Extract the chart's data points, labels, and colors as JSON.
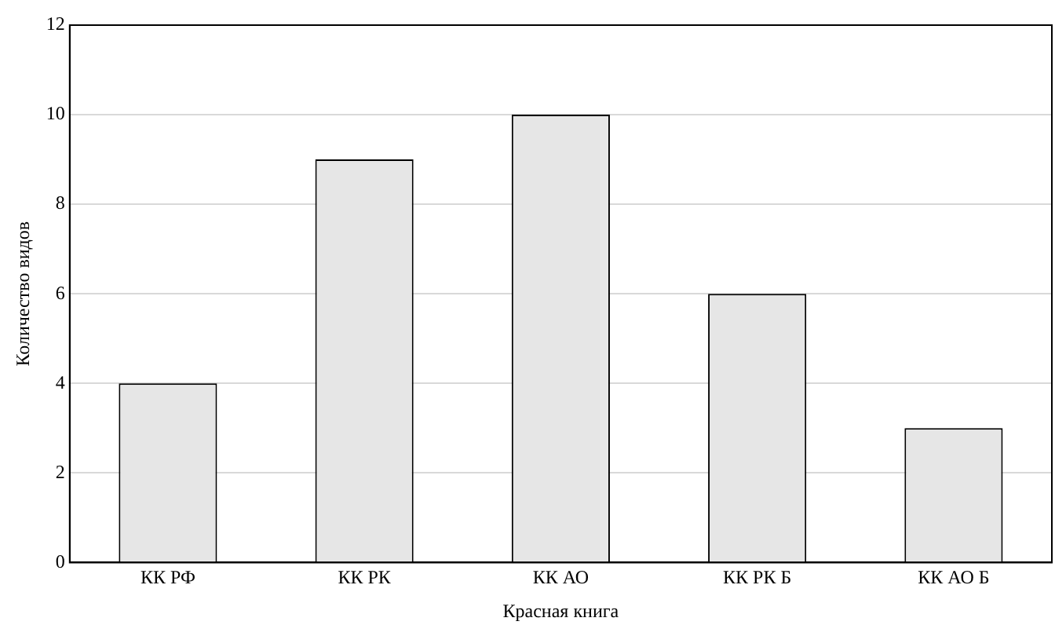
{
  "chart_data": {
    "type": "bar",
    "xlabel": "Красная книга",
    "ylabel": "Количество видов",
    "categories": [
      "КК РФ",
      "КК РК",
      "КК АО",
      "КК РК Б",
      "КК АО Б"
    ],
    "values": [
      4,
      9,
      10,
      6,
      3
    ],
    "color": "#e6e6e6",
    "ylim": [
      0,
      12
    ],
    "yticks": [
      0,
      2,
      4,
      6,
      8,
      10,
      12
    ],
    "grid": "y",
    "legend": false
  }
}
